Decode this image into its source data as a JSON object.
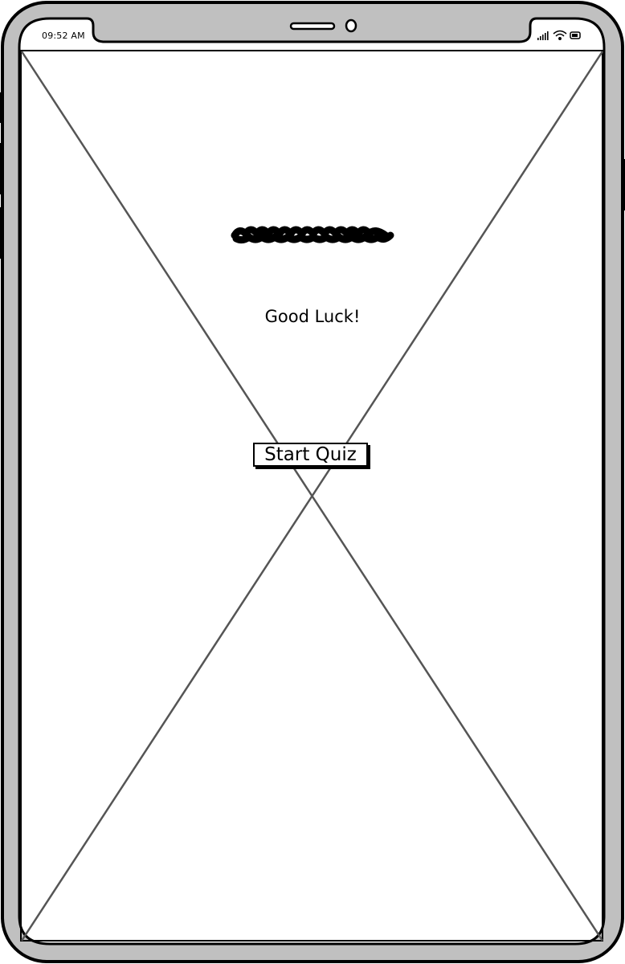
{
  "status_bar": {
    "time": "09:52 AM",
    "icons": [
      "signal-icon",
      "wifi-icon",
      "battery-icon"
    ]
  },
  "content": {
    "title_scribble_icon": "scribble-title-placeholder",
    "greeting": "Good Luck!",
    "start_button_label": "Start Quiz"
  },
  "colors": {
    "frame": "#c0c0c0",
    "outline": "#000000",
    "cross_lines": "#555555",
    "screen": "#ffffff"
  }
}
